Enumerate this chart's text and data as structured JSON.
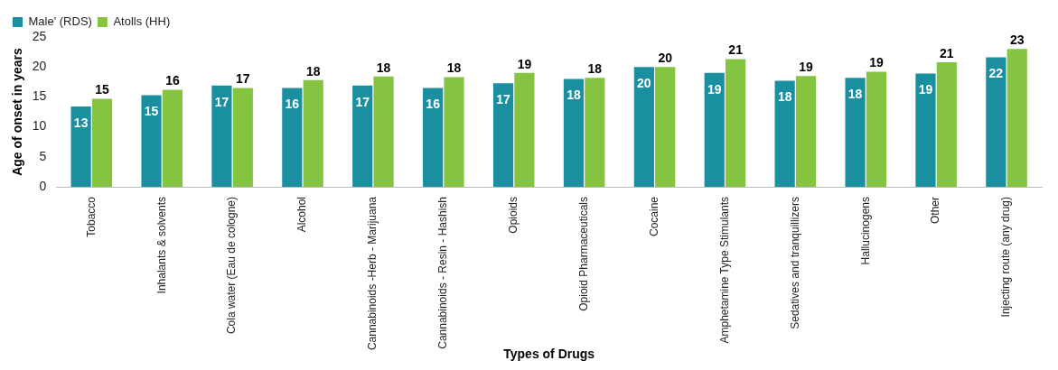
{
  "chart_data": {
    "type": "bar",
    "xlabel": "Types of Drugs",
    "ylabel": "Age of onset in years",
    "categories": [
      "Tobacco",
      "Inhalants & solvents",
      "Cola water (Eau de cologne)",
      "Alcohol",
      "Cannabinoids -Herb - Marijuana",
      "Cannabinoids - Resin - Hashish",
      "Opioids",
      "Opioid Pharmaceuticals",
      "Cocaine",
      "Amphetamine Type Stimulants",
      "Sedatives and tranquillizers",
      "Hallucinogens",
      "Other",
      "Injecting route (any drug)"
    ],
    "series": [
      {
        "name": "Male' (RDS)",
        "color": "#1a8fa0",
        "values": [
          13.4,
          15.3,
          16.9,
          16.5,
          16.9,
          16.5,
          17.3,
          18.0,
          20.0,
          19.0,
          17.7,
          18.2,
          18.9,
          21.6
        ],
        "value_labels": [
          "13",
          "15",
          "17",
          "16",
          "17",
          "16",
          "17",
          "18",
          "20",
          "19",
          "18",
          "18",
          "19",
          "22"
        ]
      },
      {
        "name": "Atolls (HH)",
        "color": "#84c441",
        "values": [
          14.7,
          16.2,
          16.5,
          17.8,
          18.4,
          18.3,
          19.0,
          18.2,
          20.0,
          21.3,
          18.5,
          19.2,
          20.8,
          23.0
        ],
        "value_labels": [
          "15",
          "16",
          "17",
          "18",
          "18",
          "18",
          "19",
          "18",
          "20",
          "21",
          "19",
          "19",
          "21",
          "23"
        ]
      }
    ],
    "ylim": [
      0,
      25
    ],
    "yticks": [
      0,
      5,
      10,
      15,
      20,
      25
    ],
    "grid": false,
    "legend": "top left"
  }
}
